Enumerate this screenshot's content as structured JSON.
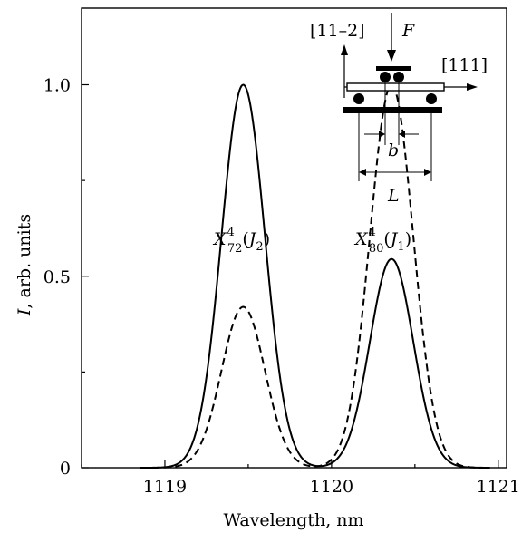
{
  "chart_data": {
    "type": "line",
    "xlabel": "Wavelength, nm",
    "ylabel_italic": "I",
    "ylabel_rest": ", arb. units",
    "xlim": [
      1118.5,
      1121.05
    ],
    "ylim": [
      0,
      1.2
    ],
    "x_ticks": [
      1119,
      1120,
      1121
    ],
    "x_tick_labels": [
      "1119",
      "1120",
      "1121"
    ],
    "y_ticks": [
      0,
      0.5,
      1.0
    ],
    "y_tick_labels": [
      "0",
      "0.5",
      "1.0"
    ],
    "grid": false,
    "series": [
      {
        "style": "solid",
        "peaks": [
          {
            "center": 1119.47,
            "height": 1.0,
            "sigma": 0.13
          },
          {
            "center": 1120.36,
            "height": 0.545,
            "sigma": 0.13
          }
        ]
      },
      {
        "style": "dashed",
        "peaks": [
          {
            "center": 1119.47,
            "height": 0.42,
            "sigma": 0.13
          },
          {
            "center": 1120.36,
            "height": 1.0,
            "sigma": 0.13
          }
        ]
      }
    ],
    "annotations": [
      {
        "base": "X",
        "sup": "4",
        "sub": "72",
        "paren_open": "(",
        "paren_base": "J",
        "paren_sub": "2",
        "paren_close": ")"
      },
      {
        "base": "X",
        "sup": "4",
        "sub": "80",
        "paren_open": "(",
        "paren_base": "J",
        "paren_sub": "1",
        "paren_close": ")"
      }
    ]
  },
  "inset": {
    "dir_left": "[11–2]",
    "dir_right": "[111]",
    "force": "F",
    "inner_span": "b",
    "outer_span": "L"
  }
}
